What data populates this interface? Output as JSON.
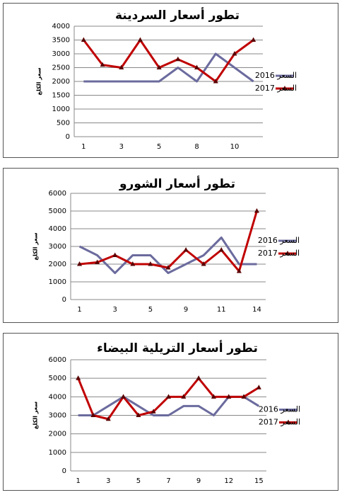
{
  "chart_data": [
    {
      "type": "line",
      "title": "تطور أسعار السردينة",
      "y_label": "سعر الكلغ",
      "categories": [
        "1",
        null,
        "3",
        null,
        "5",
        null,
        "8",
        null,
        "10",
        null
      ],
      "series": [
        {
          "name": "السعر 2016",
          "color": "#6b6b9e",
          "values": [
            2000,
            2000,
            2000,
            2000,
            2000,
            2500,
            2000,
            3000,
            2500,
            2000
          ]
        },
        {
          "name": "السعر 2017",
          "color": "#c00000",
          "values": [
            3500,
            2600,
            2500,
            3500,
            2500,
            2800,
            2500,
            2000,
            3000,
            3500
          ]
        }
      ],
      "ylim": [
        0,
        4000
      ],
      "yticks": [
        0,
        500,
        1000,
        1500,
        2000,
        2500,
        3000,
        3500,
        4000
      ],
      "grid": true
    },
    {
      "type": "line",
      "title": "تطور أسعار الشورو",
      "y_label": "سعر الكلغ",
      "categories": [
        "1",
        null,
        "3",
        null,
        "5",
        null,
        "9",
        null,
        "11",
        null,
        "14"
      ],
      "series": [
        {
          "name": "السعر 2016",
          "color": "#6b6b9e",
          "values": [
            3000,
            2500,
            1500,
            2500,
            2500,
            1500,
            2000,
            2500,
            3500,
            2000,
            2000
          ]
        },
        {
          "name": "السعر 2017",
          "color": "#c00000",
          "values": [
            2000,
            2100,
            2500,
            2000,
            2000,
            1800,
            2800,
            2000,
            2800,
            1600,
            5000
          ]
        }
      ],
      "ylim": [
        0,
        6000
      ],
      "yticks": [
        0,
        1000,
        2000,
        3000,
        4000,
        5000,
        6000
      ],
      "grid": true
    },
    {
      "type": "line",
      "title": "تطور أسعار التريلية البيضاء",
      "y_label": "سعر الكلغ",
      "categories": [
        "1",
        null,
        "3",
        null,
        "5",
        null,
        "7",
        null,
        "9",
        null,
        "12",
        null,
        "15"
      ],
      "series": [
        {
          "name": "السعر 2016",
          "color": "#6b6b9e",
          "values": [
            3000,
            3000,
            3500,
            4000,
            3500,
            3000,
            3000,
            3500,
            3500,
            3000,
            4000,
            4000,
            3500
          ]
        },
        {
          "name": "السعر 2017",
          "color": "#c00000",
          "values": [
            5000,
            3000,
            2800,
            4000,
            3000,
            3200,
            4000,
            4000,
            5000,
            4000,
            4000,
            4000,
            4500
          ]
        }
      ],
      "ylim": [
        0,
        6000
      ],
      "yticks": [
        0,
        1000,
        2000,
        3000,
        4000,
        5000,
        6000
      ],
      "grid": true
    }
  ]
}
